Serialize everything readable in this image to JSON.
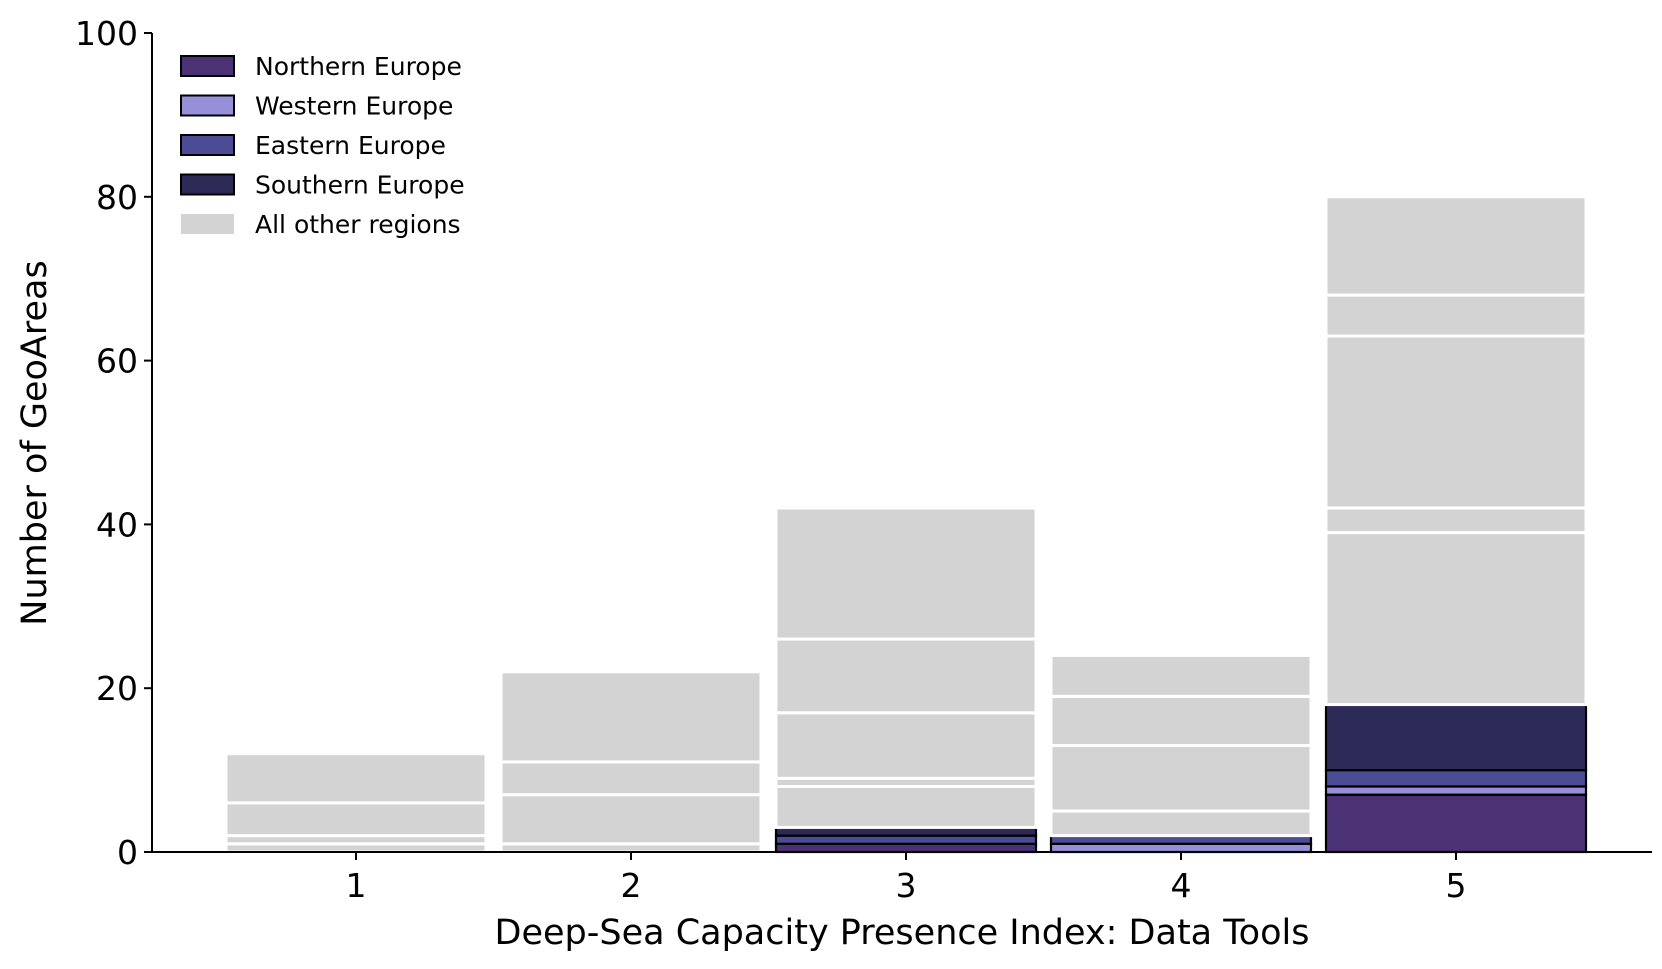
{
  "chart_data": {
    "type": "bar",
    "stacked": true,
    "title": "",
    "xlabel": "Deep-Sea Capacity Presence Index: Data Tools",
    "ylabel": "Number of GeoAreas",
    "categories": [
      "1",
      "2",
      "3",
      "4",
      "5"
    ],
    "ylim": [
      0,
      100
    ],
    "yticks": [
      0,
      20,
      40,
      60,
      80,
      100
    ],
    "grid": false,
    "legend_position": "top-left",
    "series": [
      {
        "name": "Northern Europe",
        "color": "#4b3275",
        "values": [
          0,
          0,
          1,
          0,
          7
        ],
        "segments": [
          [],
          [],
          [
            1
          ],
          [],
          [
            7
          ]
        ]
      },
      {
        "name": "Western Europe",
        "color": "#9590d8",
        "values": [
          0,
          0,
          0,
          1,
          1
        ],
        "segments": [
          [],
          [],
          [],
          [
            1
          ],
          [
            1
          ]
        ]
      },
      {
        "name": "Eastern Europe",
        "color": "#4b4b96",
        "values": [
          0,
          0,
          1,
          1,
          2
        ],
        "segments": [
          [],
          [],
          [
            1
          ],
          [
            1
          ],
          [
            2
          ]
        ]
      },
      {
        "name": "Southern Europe",
        "color": "#2e2a58",
        "values": [
          0,
          0,
          1,
          0,
          8
        ],
        "segments": [
          [],
          [],
          [
            1
          ],
          [],
          [
            8
          ]
        ]
      },
      {
        "name": "All other regions",
        "color": "#d3d3d3",
        "values": [
          12,
          22,
          39,
          22,
          62
        ],
        "segments": [
          [
            1,
            1,
            4,
            6
          ],
          [
            1,
            6,
            4,
            11
          ],
          [
            5,
            1,
            8,
            9,
            16
          ],
          [
            3,
            8,
            6,
            5
          ],
          [
            21,
            3,
            21,
            5,
            12
          ]
        ]
      }
    ]
  }
}
